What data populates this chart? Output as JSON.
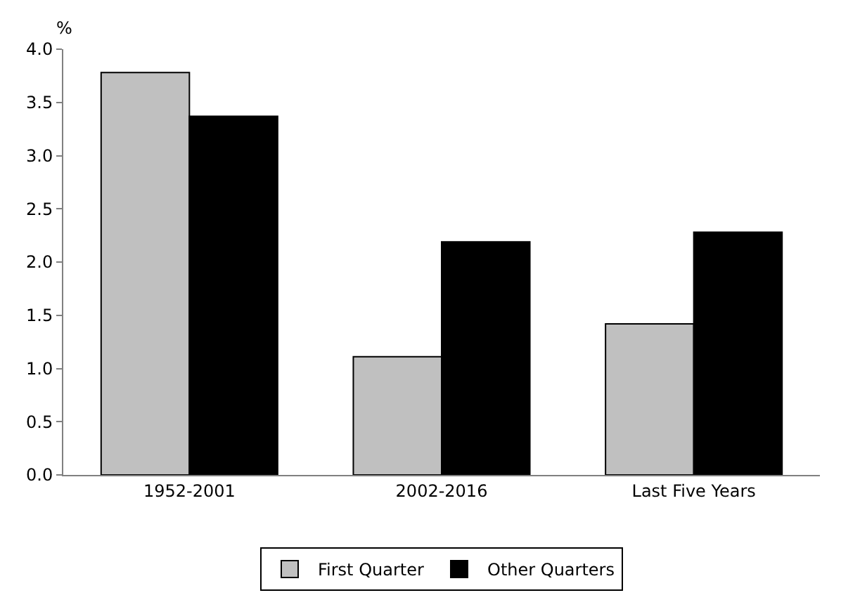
{
  "chart_data": {
    "type": "bar",
    "ylabel": "%",
    "categories": [
      "1952-2001",
      "2002-2016",
      "Last Five Years"
    ],
    "series": [
      {
        "name": "First Quarter",
        "color": "#c0c0c0",
        "values": [
          3.78,
          1.11,
          1.42
        ]
      },
      {
        "name": "Other Quarters",
        "color": "#000000",
        "values": [
          3.37,
          2.19,
          2.28
        ]
      }
    ],
    "ylim": [
      0,
      4
    ],
    "yticks": [
      {
        "value": 0,
        "label": "0.0"
      },
      {
        "value": 0.5,
        "label": "0.5"
      },
      {
        "value": 1,
        "label": "1.0"
      },
      {
        "value": 1.5,
        "label": "1.5"
      },
      {
        "value": 2,
        "label": "2.0"
      },
      {
        "value": 2.5,
        "label": "2.5"
      },
      {
        "value": 3,
        "label": "3.0"
      },
      {
        "value": 3.5,
        "label": "3.5"
      },
      {
        "value": 4,
        "label": "4.0"
      }
    ],
    "grid": false,
    "legend": "bottom"
  }
}
